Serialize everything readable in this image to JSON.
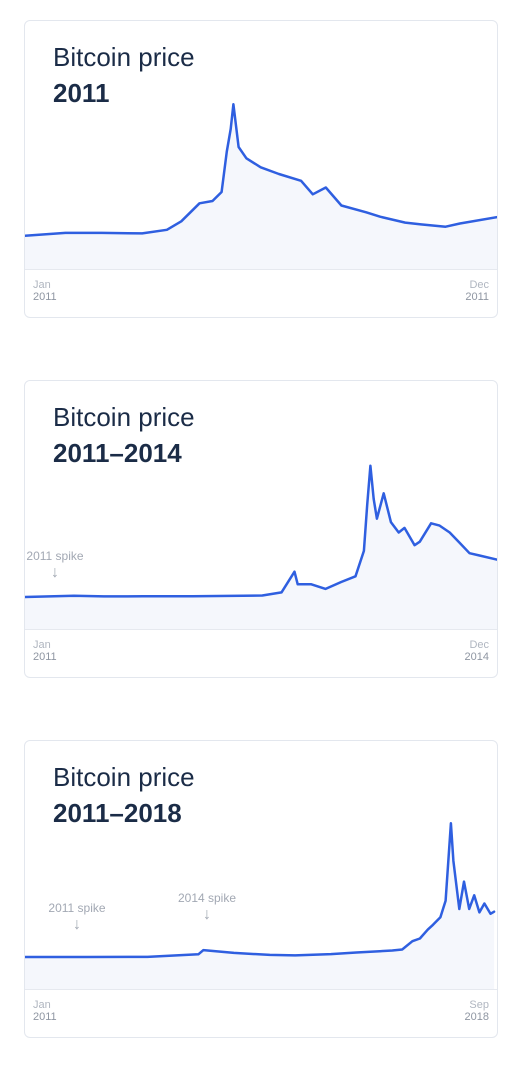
{
  "chart_data": [
    {
      "type": "line",
      "title": "Bitcoin price",
      "subtitle": "2011",
      "x_start": {
        "month": "Jan",
        "year": "2011"
      },
      "x_end": {
        "month": "Dec",
        "year": "2011"
      },
      "xlim": [
        "2011-01",
        "2011-12"
      ],
      "ylim": [
        0,
        32
      ],
      "grid": false,
      "line_color": "#2f5fe0",
      "fill_color": "#f5f7fc",
      "annotations": [],
      "series": [
        {
          "x": [
            "2011-01-01",
            "2011-02-01",
            "2011-03-01",
            "2011-04-01",
            "2011-04-20",
            "2011-05-01",
            "2011-05-15",
            "2011-05-25",
            "2011-06-01",
            "2011-06-05",
            "2011-06-08",
            "2011-06-10",
            "2011-06-14",
            "2011-06-20",
            "2011-07-01",
            "2011-07-15",
            "2011-08-01",
            "2011-08-10",
            "2011-08-20",
            "2011-09-01",
            "2011-09-20",
            "2011-10-01",
            "2011-10-20",
            "2011-11-01",
            "2011-11-20",
            "2011-12-01",
            "2011-12-31"
          ],
          "y": [
            0.3,
            0.9,
            0.9,
            0.8,
            1.6,
            3.5,
            7.5,
            8.0,
            10.0,
            19.0,
            24.0,
            29.5,
            20.0,
            17.5,
            15.5,
            14.0,
            12.5,
            9.5,
            11.0,
            7.0,
            5.5,
            4.5,
            3.2,
            2.8,
            2.3,
            3.0,
            4.5
          ]
        }
      ]
    },
    {
      "type": "line",
      "title": "Bitcoin price",
      "subtitle": "2011–2014",
      "x_start": {
        "month": "Jan",
        "year": "2011"
      },
      "x_end": {
        "month": "Dec",
        "year": "2014"
      },
      "xlim": [
        "2011-01",
        "2014-12"
      ],
      "ylim": [
        0,
        1250
      ],
      "grid": false,
      "line_color": "#2f5fe0",
      "fill_color": "#f5f7fc",
      "annotations": [
        {
          "label": "2011 spike",
          "x": "2011-06"
        }
      ],
      "series": [
        {
          "x": [
            "2011-01-01",
            "2011-06-01",
            "2011-09-01",
            "2012-01-01",
            "2012-06-01",
            "2013-01-01",
            "2013-03-01",
            "2013-04-10",
            "2013-04-20",
            "2013-06-01",
            "2013-07-15",
            "2013-09-01",
            "2013-10-15",
            "2013-11-10",
            "2013-11-20",
            "2013-11-30",
            "2013-12-10",
            "2013-12-20",
            "2014-01-10",
            "2014-02-01",
            "2014-02-25",
            "2014-03-15",
            "2014-04-15",
            "2014-05-01",
            "2014-06-05",
            "2014-07-01",
            "2014-08-01",
            "2014-09-01",
            "2014-10-01",
            "2014-11-01",
            "2014-12-31"
          ],
          "y": [
            0.3,
            10,
            5,
            6,
            6,
            13,
            40,
            220,
            110,
            110,
            70,
            130,
            180,
            400,
            800,
            1140,
            850,
            680,
            900,
            650,
            560,
            600,
            450,
            480,
            640,
            620,
            560,
            470,
            380,
            360,
            320
          ]
        }
      ]
    },
    {
      "type": "line",
      "title": "Bitcoin price",
      "subtitle": "2011–2018",
      "x_start": {
        "month": "Jan",
        "year": "2011"
      },
      "x_end": {
        "month": "Sep",
        "year": "2018"
      },
      "xlim": [
        "2011-01",
        "2018-09"
      ],
      "ylim": [
        0,
        21000
      ],
      "grid": false,
      "line_color": "#2f5fe0",
      "fill_color": "#f5f7fc",
      "annotations": [
        {
          "label": "2011 spike",
          "x": "2011-06"
        },
        {
          "label": "2014 spike",
          "x": "2013-12"
        }
      ],
      "series": [
        {
          "x": [
            "2011-01-01",
            "2012-01-01",
            "2013-01-01",
            "2013-11-01",
            "2013-12-01",
            "2014-06-01",
            "2015-01-01",
            "2015-06-01",
            "2016-01-01",
            "2016-06-01",
            "2017-01-01",
            "2017-03-01",
            "2017-05-01",
            "2017-06-15",
            "2017-08-01",
            "2017-09-01",
            "2017-10-15",
            "2017-11-15",
            "2017-12-17",
            "2018-01-01",
            "2018-02-05",
            "2018-03-05",
            "2018-04-05",
            "2018-05-05",
            "2018-06-05",
            "2018-07-05",
            "2018-08-10",
            "2018-09-01"
          ],
          "y": [
            0,
            5,
            13,
            400,
            1000,
            600,
            300,
            240,
            420,
            650,
            950,
            1100,
            2300,
            2700,
            4000,
            4700,
            5800,
            8200,
            19500,
            14000,
            7000,
            11000,
            7000,
            9000,
            6500,
            7800,
            6300,
            6600
          ]
        }
      ]
    }
  ]
}
